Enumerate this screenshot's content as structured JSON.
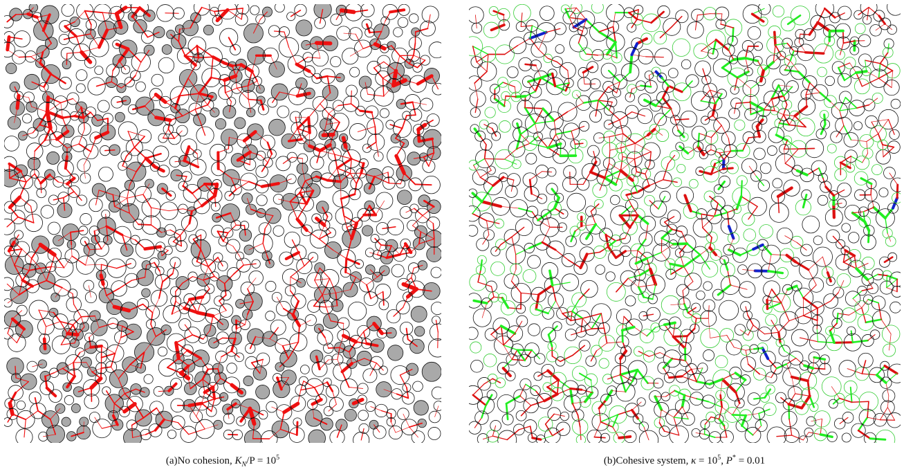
{
  "figure": {
    "panels": [
      {
        "id": "a",
        "caption_tag": "(a)",
        "caption_text": "No cohesion,",
        "caption_math": {
          "var": "K",
          "sub": "N",
          "rest": "/P = 10",
          "sup": "5"
        },
        "colors": {
          "grain_outline": "#111111",
          "unloaded_grain_fill": "#a9a9a9",
          "force_chain": "#ee1111"
        }
      },
      {
        "id": "b",
        "caption_tag": "(b)",
        "caption_text": "Cohesive system,",
        "caption_math": {
          "k_sym": "κ",
          "k_rest": " = 10",
          "k_sup": "5",
          "p_sym": "P",
          "p_sup": "*",
          "p_rest": " = 0.01"
        },
        "colors": {
          "grain_outline": "#111111",
          "compressive_force": "#dd1111",
          "tensile_force": "#22ee22",
          "strong_force": "#1122cc",
          "grain_outline_green": "#33cc33"
        }
      }
    ]
  }
}
